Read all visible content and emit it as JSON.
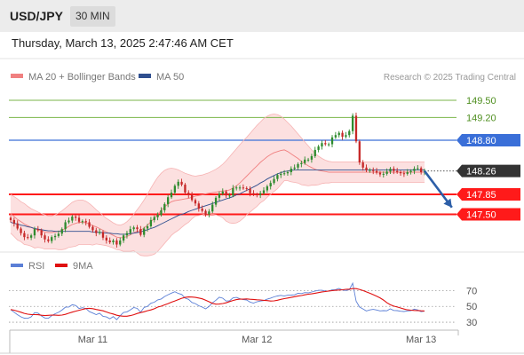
{
  "header": {
    "symbol": "USD/JPY",
    "timeframe": "30 MIN"
  },
  "datetime": "Thursday, March 13, 2025 2:47:46 AM CET",
  "legend": {
    "bb_label": "MA 20 + Bollinger Bands",
    "ma50_label": "MA 50",
    "bb_color": "#f08080",
    "ma50_color": "#2f4f8f"
  },
  "credit": "Research © 2025 Trading Central",
  "colors": {
    "bull": "#2e8b2e",
    "bear": "#c62828",
    "support": "#ff1a1a",
    "resistance_green": "#7ab648",
    "resistance_blue": "#3a6fd8",
    "last": "#333333",
    "rsi": "#5b7fd6",
    "rsi_ma": "#e01010",
    "band_fill": "#fbd6d6"
  },
  "chart_data": [
    {
      "type": "candlestick",
      "y_range": [
        146.9,
        149.75
      ],
      "x_ticks": [
        {
          "label": "Mar 11",
          "index": 24
        },
        {
          "label": "Mar 12",
          "index": 72
        },
        {
          "label": "Mar 13",
          "index": 120
        }
      ],
      "levels": [
        {
          "label": "149.50",
          "value": 149.5,
          "kind": "resistance_green"
        },
        {
          "label": "149.20",
          "value": 149.2,
          "kind": "resistance_green"
        },
        {
          "label": "148.80",
          "value": 148.8,
          "kind": "resistance_blue"
        },
        {
          "label": "148.26",
          "value": 148.26,
          "kind": "last"
        },
        {
          "label": "147.85",
          "value": 147.85,
          "kind": "support"
        },
        {
          "label": "147.50",
          "value": 147.5,
          "kind": "support"
        }
      ],
      "close": [
        147.4,
        147.34,
        147.25,
        147.17,
        147.1,
        147.09,
        147.13,
        147.24,
        147.22,
        147.13,
        147.06,
        147.03,
        147.1,
        147.12,
        147.16,
        147.24,
        147.36,
        147.39,
        147.46,
        147.44,
        147.37,
        147.38,
        147.36,
        147.28,
        147.22,
        147.17,
        147.19,
        147.09,
        147.04,
        147.01,
        147.04,
        146.97,
        147.04,
        147.13,
        147.17,
        147.24,
        147.27,
        147.24,
        147.14,
        147.25,
        147.29,
        147.4,
        147.45,
        147.49,
        147.57,
        147.68,
        147.8,
        147.88,
        148.0,
        148.07,
        148.02,
        147.88,
        147.84,
        147.75,
        147.69,
        147.6,
        147.56,
        147.5,
        147.55,
        147.67,
        147.79,
        147.86,
        147.9,
        147.83,
        147.83,
        147.96,
        147.97,
        147.97,
        147.96,
        147.95,
        147.87,
        147.85,
        147.84,
        147.87,
        147.92,
        147.99,
        148.05,
        148.12,
        148.19,
        148.21,
        148.22,
        148.24,
        148.3,
        148.32,
        148.38,
        148.4,
        148.46,
        148.46,
        148.52,
        148.63,
        148.69,
        148.75,
        148.73,
        148.73,
        148.85,
        148.89,
        148.93,
        148.86,
        148.89,
        148.96,
        149.23,
        148.78,
        148.41,
        148.32,
        148.27,
        148.28,
        148.26,
        148.23,
        148.2,
        148.21,
        148.25,
        148.3,
        148.26,
        148.24,
        148.22,
        148.21,
        148.24,
        148.26,
        148.3,
        148.31,
        148.24,
        148.26
      ],
      "ma20": [
        147.51,
        147.46,
        147.41,
        147.37,
        147.33,
        147.3,
        147.27,
        147.24,
        147.23,
        147.21,
        147.19,
        147.18,
        147.18,
        147.19,
        147.2,
        147.22,
        147.25,
        147.29,
        147.32,
        147.34,
        147.36,
        147.36,
        147.35,
        147.33,
        147.3,
        147.28,
        147.25,
        147.22,
        147.19,
        147.16,
        147.13,
        147.1,
        147.09,
        147.09,
        147.11,
        147.14,
        147.18,
        147.2,
        147.22,
        147.26,
        147.31,
        147.37,
        147.43,
        147.5,
        147.57,
        147.63,
        147.68,
        147.72,
        147.74,
        147.75,
        147.76,
        147.77,
        147.78,
        147.8,
        147.82,
        147.83,
        147.84,
        147.86,
        147.87,
        147.88,
        147.89,
        147.9,
        147.91,
        147.91,
        147.93,
        147.96,
        148.0,
        148.05,
        148.11,
        148.17,
        148.23,
        148.29,
        148.35,
        148.41,
        148.46,
        148.51,
        148.55,
        148.58,
        148.6,
        148.62,
        148.63,
        148.6,
        148.56,
        148.52,
        148.48,
        148.43,
        148.39,
        148.35,
        148.32,
        148.29,
        148.27,
        148.26,
        148.25,
        148.24,
        148.24,
        148.24,
        148.24,
        148.24,
        148.24,
        148.24,
        148.24,
        148.24,
        148.24,
        148.24,
        148.24,
        148.24,
        148.24,
        148.24,
        148.24,
        148.24,
        148.24,
        148.24,
        148.24,
        148.24,
        148.24,
        148.24,
        148.24,
        148.24,
        148.24,
        148.24,
        148.24,
        148.24
      ],
      "upper_band": [
        147.85,
        147.81,
        147.77,
        147.72,
        147.69,
        147.64,
        147.6,
        147.57,
        147.54,
        147.51,
        147.49,
        147.47,
        147.47,
        147.49,
        147.52,
        147.56,
        147.61,
        147.66,
        147.71,
        147.74,
        147.75,
        147.75,
        147.73,
        147.69,
        147.64,
        147.58,
        147.53,
        147.48,
        147.43,
        147.39,
        147.35,
        147.32,
        147.31,
        147.33,
        147.37,
        147.43,
        147.5,
        147.58,
        147.66,
        147.75,
        147.85,
        147.96,
        148.06,
        148.15,
        148.22,
        148.27,
        148.3,
        148.31,
        148.3,
        148.28,
        148.25,
        148.22,
        148.2,
        148.18,
        148.17,
        148.18,
        148.19,
        148.21,
        148.23,
        148.26,
        148.29,
        148.33,
        148.38,
        148.44,
        148.51,
        148.58,
        148.65,
        148.72,
        148.79,
        148.85,
        148.92,
        148.99,
        149.06,
        149.12,
        149.18,
        149.22,
        149.25,
        149.26,
        149.25,
        149.22,
        149.17,
        149.11,
        149.05,
        148.98,
        148.91,
        148.84,
        148.77,
        148.7,
        148.63,
        148.57,
        148.52,
        148.48,
        148.45,
        148.43,
        148.42,
        148.42,
        148.42,
        148.42,
        148.42,
        148.42,
        148.42,
        148.42,
        148.42,
        148.42,
        148.42,
        148.42,
        148.42,
        148.42,
        148.42,
        148.42,
        148.42,
        148.42,
        148.42,
        148.42,
        148.42,
        148.42,
        148.42,
        148.42,
        148.42,
        148.42,
        148.42,
        148.42
      ],
      "lower_band": [
        147.17,
        147.11,
        147.05,
        147.02,
        146.97,
        146.96,
        146.94,
        146.91,
        146.92,
        146.91,
        146.89,
        146.89,
        146.89,
        146.89,
        146.88,
        146.88,
        146.89,
        146.92,
        146.93,
        146.94,
        146.97,
        146.97,
        146.97,
        146.97,
        146.96,
        146.98,
        146.97,
        146.96,
        146.95,
        146.93,
        146.91,
        146.88,
        146.87,
        146.85,
        146.85,
        146.85,
        146.86,
        146.82,
        146.78,
        146.77,
        146.77,
        146.78,
        146.8,
        146.85,
        146.92,
        146.99,
        147.06,
        147.13,
        147.18,
        147.22,
        147.27,
        147.32,
        147.36,
        147.42,
        147.47,
        147.48,
        147.49,
        147.51,
        147.51,
        147.5,
        147.49,
        147.47,
        147.44,
        147.38,
        147.35,
        147.34,
        147.35,
        147.38,
        147.43,
        147.49,
        147.54,
        147.59,
        147.64,
        147.7,
        147.74,
        147.8,
        147.85,
        147.9,
        147.95,
        148.02,
        148.09,
        148.09,
        148.07,
        148.06,
        148.05,
        148.02,
        148.01,
        148.0,
        148.01,
        148.01,
        148.02,
        148.04,
        148.05,
        148.05,
        148.06,
        148.06,
        148.06,
        148.06,
        148.06,
        148.06,
        148.06,
        148.06,
        148.06,
        148.06,
        148.06,
        148.06,
        148.06,
        148.06,
        148.06,
        148.06,
        148.06,
        148.06,
        148.06,
        148.06,
        148.06,
        148.06,
        148.06,
        148.06,
        148.06,
        148.06,
        148.06,
        148.06
      ],
      "ma50": [
        147.36,
        147.34,
        147.33,
        147.31,
        147.3,
        147.28,
        147.27,
        147.25,
        147.24,
        147.23,
        147.22,
        147.21,
        147.21,
        147.2,
        147.2,
        147.2,
        147.2,
        147.2,
        147.2,
        147.2,
        147.2,
        147.2,
        147.2,
        147.2,
        147.19,
        147.19,
        147.18,
        147.18,
        147.17,
        147.17,
        147.16,
        147.16,
        147.15,
        147.15,
        147.15,
        147.16,
        147.17,
        147.18,
        147.19,
        147.21,
        147.23,
        147.25,
        147.27,
        147.3,
        147.33,
        147.36,
        147.39,
        147.42,
        147.45,
        147.48,
        147.5,
        147.52,
        147.55,
        147.57,
        147.59,
        147.61,
        147.63,
        147.65,
        147.67,
        147.69,
        147.71,
        147.73,
        147.75,
        147.77,
        147.79,
        147.81,
        147.84,
        147.86,
        147.89,
        147.92,
        147.95,
        147.98,
        148.01,
        148.05,
        148.08,
        148.12,
        148.15,
        148.18,
        148.21,
        148.23,
        148.25,
        148.26,
        148.27,
        148.28,
        148.28,
        148.28,
        148.28,
        148.28,
        148.28,
        148.28,
        148.28,
        148.28,
        148.28,
        148.28,
        148.28,
        148.28,
        148.28,
        148.28,
        148.28,
        148.28,
        148.28,
        148.28,
        148.28,
        148.28,
        148.28,
        148.28,
        148.28,
        148.28,
        148.28,
        148.28,
        148.28,
        148.28,
        148.28,
        148.28,
        148.28,
        148.28,
        148.28,
        148.28,
        148.28,
        148.28,
        148.28,
        148.28
      ],
      "forecast_arrow": {
        "from_index": 121,
        "from_value": 148.26,
        "to_index": 129,
        "to_value": 147.62
      }
    },
    {
      "type": "line",
      "title": "",
      "legend": [
        {
          "name": "RSI"
        },
        {
          "name": "9MA"
        }
      ],
      "y_range": [
        20,
        85
      ],
      "y_ticks": [
        {
          "label": "70",
          "value": 70
        },
        {
          "label": "50",
          "value": 50
        },
        {
          "label": "30",
          "value": 30
        }
      ],
      "series": [
        {
          "name": "RSI",
          "values": [
            46.0,
            42.6,
            39.5,
            36.8,
            35.1,
            34.9,
            36.8,
            42.2,
            41.5,
            37.9,
            35.3,
            34.9,
            38.4,
            40.7,
            42.5,
            45.3,
            49.0,
            49.2,
            52.0,
            51.2,
            47.3,
            48.3,
            47.4,
            43.4,
            41.6,
            39.6,
            41.4,
            37.5,
            36.7,
            34.4,
            37.2,
            33.2,
            38.1,
            42.3,
            43.1,
            45.7,
            48.6,
            47.5,
            42.6,
            48.6,
            50.0,
            54.0,
            55.3,
            58.2,
            59.3,
            62.5,
            64.7,
            66.7,
            68.5,
            66.4,
            65.0,
            60.5,
            58.9,
            55.0,
            53.5,
            50.8,
            49.1,
            46.9,
            49.9,
            54.5,
            57.8,
            61.6,
            60.3,
            56.8,
            57.1,
            60.7,
            61.3,
            59.7,
            58.6,
            58.1,
            55.4,
            54.2,
            55.9,
            56.8,
            57.3,
            59.1,
            60.5,
            62.0,
            63.2,
            63.9,
            63.0,
            64.1,
            64.3,
            64.6,
            66.5,
            66.2,
            67.4,
            67.1,
            68.2,
            69.3,
            70.3,
            70.3,
            69.4,
            69.2,
            71.1,
            71.2,
            72.7,
            70.7,
            70.1,
            71.0,
            79.3,
            56.5,
            49.3,
            46.8,
            44.2,
            45.5,
            46.2,
            45.4,
            44.3,
            44.6,
            44.4,
            46.9,
            44.9,
            44.7,
            43.9,
            43.5,
            44.3,
            44.7,
            46.4,
            45.6,
            43.3,
            44.1
          ]
        },
        {
          "name": "9MA",
          "values": [
            46.0,
            45.2,
            44.0,
            42.6,
            41.2,
            40.2,
            39.7,
            39.6,
            39.5,
            38.8,
            38.4,
            38.7,
            39.1,
            38.9,
            38.7,
            39.0,
            40.0,
            41.4,
            42.8,
            44.0,
            45.1,
            46.2,
            47.2,
            47.6,
            47.1,
            46.1,
            45.3,
            44.4,
            43.0,
            41.4,
            40.4,
            38.8,
            38.0,
            37.6,
            37.6,
            38.4,
            39.5,
            41.1,
            42.2,
            43.2,
            44.5,
            45.6,
            47.0,
            49.1,
            50.3,
            51.9,
            53.5,
            55.3,
            56.9,
            58.5,
            60.2,
            61.4,
            61.9,
            61.8,
            61.3,
            60.6,
            59.6,
            57.8,
            55.9,
            53.8,
            52.8,
            52.9,
            53.6,
            54.5,
            56.1,
            57.4,
            58.6,
            59.1,
            59.1,
            59.4,
            59.0,
            58.8,
            58.3,
            58.1,
            57.7,
            57.3,
            56.8,
            57.0,
            57.8,
            58.9,
            59.8,
            60.6,
            61.3,
            62.2,
            63.0,
            63.7,
            64.6,
            65.4,
            65.8,
            66.6,
            67.4,
            68.3,
            68.8,
            69.4,
            69.9,
            70.3,
            70.7,
            71.0,
            71.5,
            71.8,
            72.4,
            72.4,
            71.4,
            70.0,
            68.3,
            66.6,
            64.8,
            62.8,
            60.8,
            58.0,
            54.6,
            52.0,
            50.4,
            49.2,
            48.0,
            46.7,
            45.7,
            45.2,
            44.9,
            44.8,
            44.4,
            44.2
          ]
        }
      ],
      "x_ticks": [
        {
          "label": "Mar 11",
          "index": 24
        },
        {
          "label": "Mar 12",
          "index": 72
        },
        {
          "label": "Mar 13",
          "index": 120
        }
      ]
    }
  ]
}
